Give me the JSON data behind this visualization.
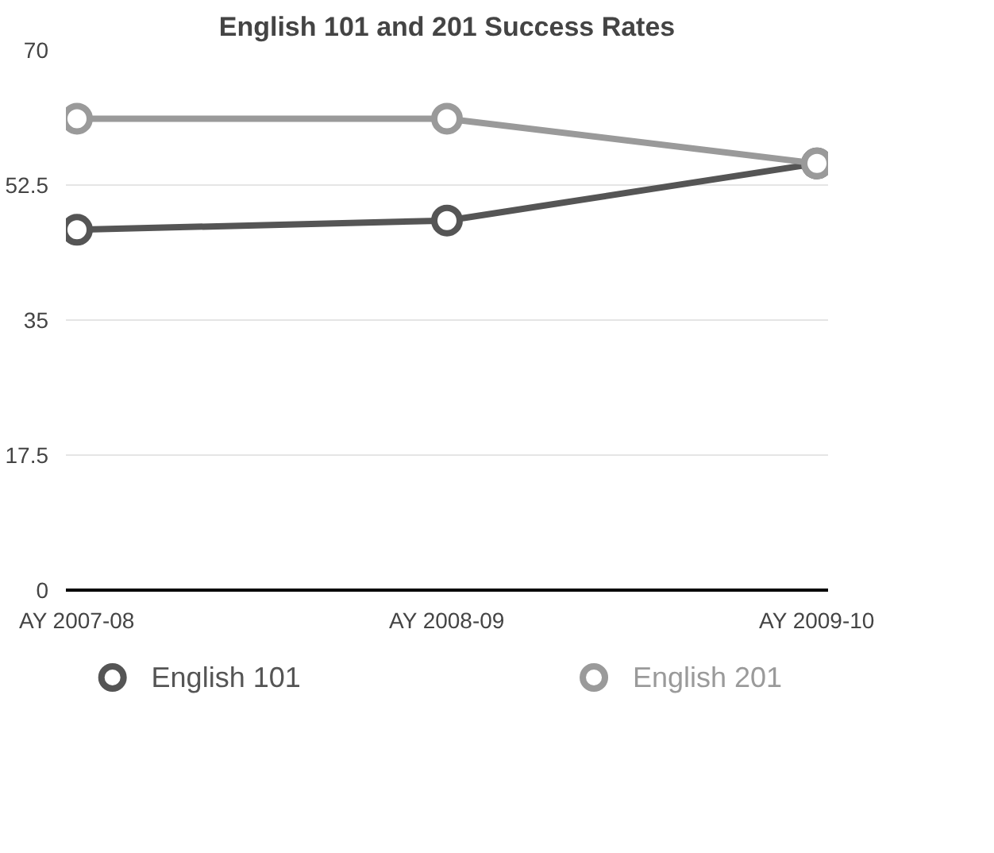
{
  "chart_data": {
    "type": "line",
    "title": "English 101 and 201 Success Rates",
    "categories": [
      "AY 2007-08",
      "AY 2008-09",
      "AY 2009-10"
    ],
    "series": [
      {
        "name": "English 101",
        "color": "#555555",
        "values": [
          46.7,
          47.9,
          55.3
        ]
      },
      {
        "name": "English 201",
        "color": "#9a9a9a",
        "values": [
          61.1,
          61.1,
          55.3
        ]
      }
    ],
    "ylim": [
      0,
      70
    ],
    "yticks": [
      0,
      17.5,
      35,
      52.5,
      70
    ],
    "grid": "y",
    "legend": "bottom",
    "marker": "circle",
    "line_style": "solid"
  }
}
